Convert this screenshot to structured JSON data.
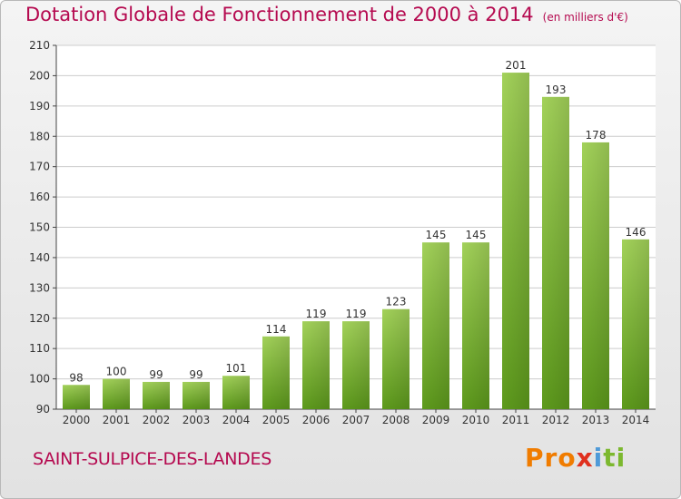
{
  "header": {
    "title": "Dotation Globale de Fonctionnement de 2000 à 2014",
    "unit": "(en milliers d'€)"
  },
  "footer": {
    "commune": "SAINT-SULPICE-DES-LANDES",
    "logo_parts": [
      "Pro",
      "x",
      "i",
      "ti"
    ]
  },
  "colors": {
    "title": "#b5094f",
    "bar_light": "#a3d25a",
    "bar_dark": "#5d9a1c",
    "grid": "#cccccc"
  },
  "chart_data": {
    "type": "bar",
    "title": "Dotation Globale de Fonctionnement de 2000 à 2014",
    "subtitle": "(en milliers d'€)",
    "categories": [
      "2000",
      "2001",
      "2002",
      "2003",
      "2004",
      "2005",
      "2006",
      "2007",
      "2008",
      "2009",
      "2010",
      "2011",
      "2012",
      "2013",
      "2014"
    ],
    "values": [
      98,
      100,
      99,
      99,
      101,
      114,
      119,
      119,
      123,
      145,
      145,
      201,
      193,
      178,
      146
    ],
    "ylim": [
      90,
      210
    ],
    "yticks": [
      90,
      100,
      110,
      120,
      130,
      140,
      150,
      160,
      170,
      180,
      190,
      200,
      210
    ],
    "grid": true,
    "legend": "none"
  }
}
